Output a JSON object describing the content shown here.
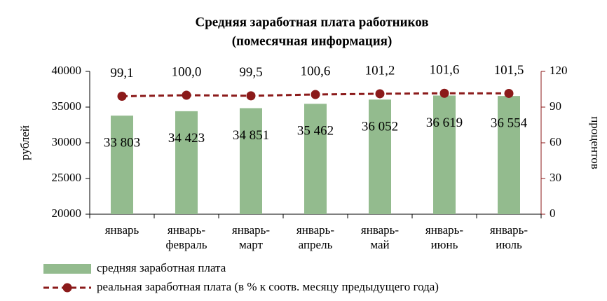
{
  "chart_data": {
    "type": "bar_line",
    "title": "Средняя заработная плата работников",
    "subtitle": "(помесячная информация)",
    "ylabel": "рублей",
    "y2label": "процентов",
    "categories": [
      [
        "январь"
      ],
      [
        "январь-",
        "февраль"
      ],
      [
        "январь-",
        "март"
      ],
      [
        "январь-",
        "апрель"
      ],
      [
        "январь-",
        "май"
      ],
      [
        "январь-",
        "июнь"
      ],
      [
        "январь-",
        "июль"
      ]
    ],
    "series": [
      {
        "name": "средняя заработная плата",
        "type": "bar",
        "color": "#93bb8e",
        "values": [
          33803,
          34423,
          34851,
          35462,
          36052,
          36619,
          36554
        ],
        "value_labels": [
          "33 803",
          "34 423",
          "34 851",
          "35 462",
          "36 052",
          "36 619",
          "36 554"
        ]
      },
      {
        "name": "реальная заработная плата (в % к соотв. месяцу предыдущего года)",
        "type": "line",
        "axis": "y2",
        "color": "#8b1a1a",
        "values": [
          99.1,
          100.0,
          99.5,
          100.6,
          101.2,
          101.6,
          101.5
        ],
        "value_labels": [
          "99,1",
          "100,0",
          "99,5",
          "100,6",
          "101,2",
          "101,6",
          "101,5"
        ]
      }
    ],
    "ylim": [
      20000,
      40000
    ],
    "yticks": [
      20000,
      25000,
      30000,
      35000,
      40000
    ],
    "y2lim": [
      0,
      120
    ],
    "y2ticks": [
      0,
      30,
      60,
      90,
      120
    ],
    "grid": false
  }
}
